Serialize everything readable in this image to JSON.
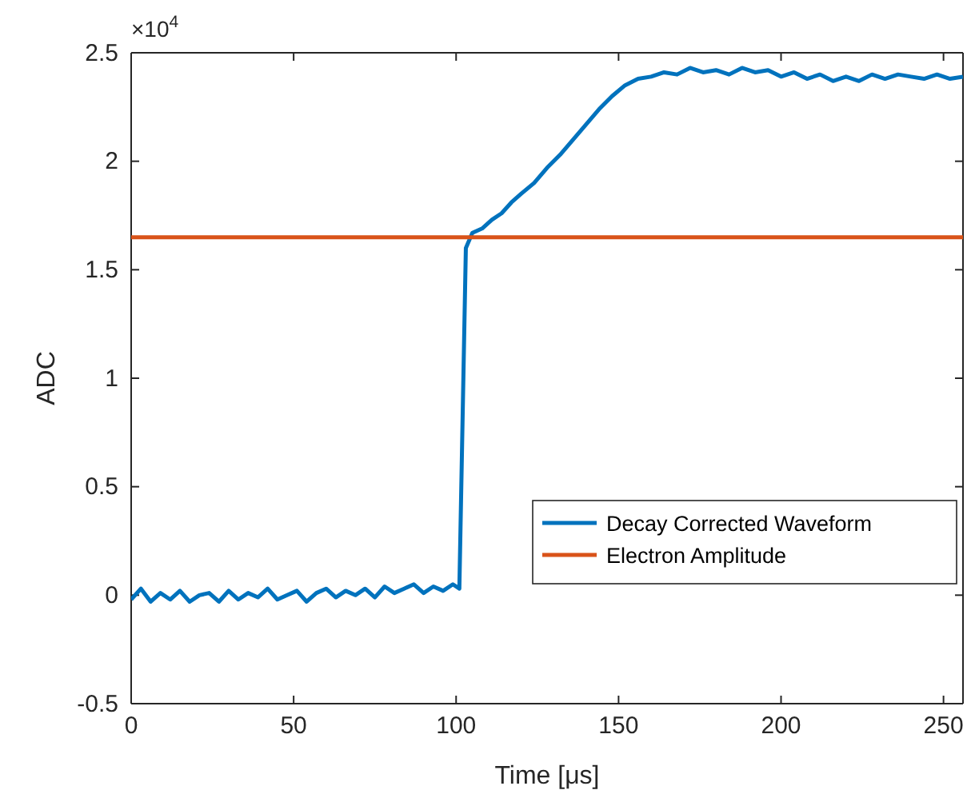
{
  "chart_data": {
    "type": "line",
    "xlabel": "Time [μs]",
    "ylabel": "ADC",
    "annotations": [
      "×10$^{4}$"
    ],
    "xlim": [
      0,
      256
    ],
    "xticks": [
      0,
      50,
      100,
      150,
      200,
      250
    ],
    "ylim": [
      -0.5,
      2.5
    ],
    "yticks": [
      -0.5,
      0,
      0.5,
      1,
      1.5,
      2,
      2.5
    ],
    "grid": false,
    "legend": "bottom right",
    "marker": "none",
    "line_style": "solid",
    "series": [
      {
        "name": "Decay Corrected Waveform",
        "color": "#0072bd",
        "x": [
          0,
          3,
          6,
          9,
          12,
          15,
          18,
          21,
          24,
          27,
          30,
          33,
          36,
          39,
          42,
          45,
          48,
          51,
          54,
          57,
          60,
          63,
          66,
          69,
          72,
          75,
          78,
          81,
          84,
          87,
          90,
          93,
          96,
          99,
          101,
          103,
          105,
          108,
          111,
          114,
          117,
          120,
          124,
          128,
          132,
          136,
          140,
          144,
          148,
          152,
          156,
          160,
          164,
          168,
          172,
          176,
          180,
          184,
          188,
          192,
          196,
          200,
          204,
          208,
          212,
          216,
          220,
          224,
          228,
          232,
          236,
          240,
          244,
          248,
          252,
          256
        ],
        "values": [
          -0.02,
          0.03,
          -0.03,
          0.01,
          -0.02,
          0.02,
          -0.03,
          0,
          0.01,
          -0.03,
          0.02,
          -0.02,
          0.01,
          -0.01,
          0.03,
          -0.02,
          0,
          0.02,
          -0.03,
          0.01,
          0.03,
          -0.01,
          0.02,
          0,
          0.03,
          -0.01,
          0.04,
          0.01,
          0.03,
          0.05,
          0.01,
          0.04,
          0.02,
          0.05,
          0.03,
          1.6,
          1.67,
          1.69,
          1.73,
          1.76,
          1.81,
          1.85,
          1.9,
          1.97,
          2.03,
          2.1,
          2.17,
          2.24,
          2.3,
          2.35,
          2.38,
          2.39,
          2.41,
          2.4,
          2.43,
          2.41,
          2.42,
          2.4,
          2.43,
          2.41,
          2.42,
          2.39,
          2.41,
          2.38,
          2.4,
          2.37,
          2.39,
          2.37,
          2.4,
          2.38,
          2.4,
          2.39,
          2.38,
          2.4,
          2.38,
          2.39
        ]
      },
      {
        "name": "Electron Amplitude",
        "color": "#d95319",
        "x": [
          0,
          256
        ],
        "values": [
          1.65,
          1.65
        ]
      }
    ]
  }
}
